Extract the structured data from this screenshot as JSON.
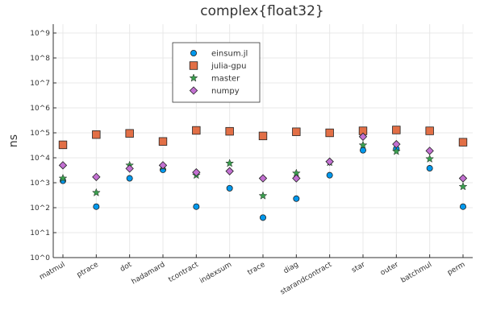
{
  "chart_data": {
    "type": "scatter",
    "title": "complex{float32}",
    "xlabel": "",
    "ylabel": "ns",
    "yscale": "log10",
    "ylim": [
      1,
      1000000000
    ],
    "y_tick_labels": [
      "10^0",
      "10^1",
      "10^2",
      "10^3",
      "10^4",
      "10^5",
      "10^6",
      "10^7",
      "10^8",
      "10^9"
    ],
    "categories": [
      "matmul",
      "ptrace",
      "dot",
      "hadamard",
      "tcontract",
      "indexsum",
      "trace",
      "diag",
      "starandcontract",
      "star",
      "outer",
      "batchmul",
      "perm"
    ],
    "grid": true,
    "legend_position": "top-center",
    "series": [
      {
        "name": "einsum.jl",
        "marker": "circle",
        "color": "#0098ed",
        "values": [
          1200,
          110,
          1500,
          3300,
          110,
          600,
          40,
          230,
          2000,
          20000,
          23000,
          3800,
          110
        ]
      },
      {
        "name": "julia-gpu",
        "marker": "square",
        "color": "#e26f46",
        "values": [
          33000,
          85000,
          95000,
          45000,
          125000,
          115000,
          75000,
          110000,
          100000,
          120000,
          130000,
          120000,
          42000
        ]
      },
      {
        "name": "master",
        "marker": "star",
        "color": "#3a9e4e",
        "values": [
          1500,
          400,
          5000,
          4500,
          2000,
          6000,
          300,
          2400,
          6500,
          32000,
          18000,
          9000,
          700
        ]
      },
      {
        "name": "numpy",
        "marker": "diamond",
        "color": "#c270d1",
        "values": [
          5000,
          1700,
          3700,
          5000,
          2600,
          2900,
          1500,
          1500,
          7000,
          70000,
          35000,
          19000,
          1500
        ]
      }
    ]
  }
}
